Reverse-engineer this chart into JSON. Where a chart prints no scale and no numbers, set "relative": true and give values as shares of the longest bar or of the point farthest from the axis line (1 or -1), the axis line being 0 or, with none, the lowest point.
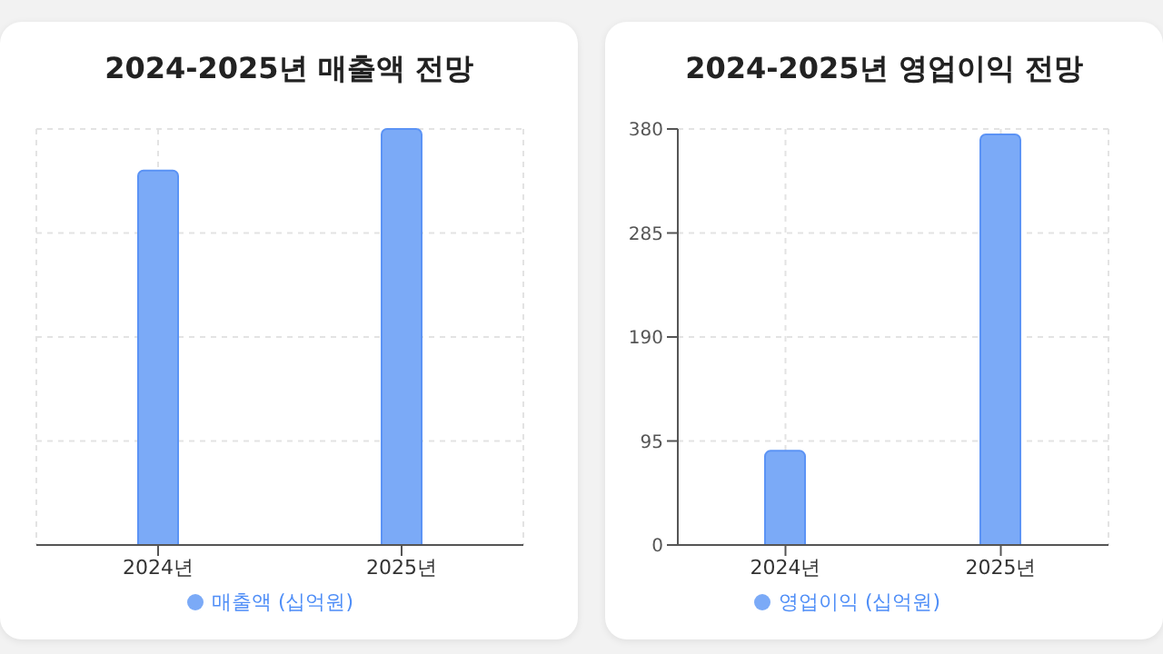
{
  "chart_data": [
    {
      "type": "bar",
      "title": "2024-2025년 매출액 전망",
      "categories": [
        "2024년",
        "2025년"
      ],
      "relative": true,
      "series": [
        {
          "name": "매출액 (십억원)",
          "color": "#7baaf7",
          "values": [
            0.9,
            1
          ]
        }
      ],
      "grid": true,
      "legend": "bottom"
    },
    {
      "type": "bar",
      "title": "2024-2025년 영업이익 전망",
      "categories": [
        "2024년",
        "2025년"
      ],
      "series": [
        {
          "name": "영업이익 (십억원)",
          "color": "#7baaf7",
          "values": [
            86,
            375
          ]
        }
      ],
      "ylim": [
        0,
        380
      ],
      "yticks": [
        0,
        95,
        190,
        285,
        380
      ],
      "grid": true,
      "legend": "bottom"
    }
  ]
}
